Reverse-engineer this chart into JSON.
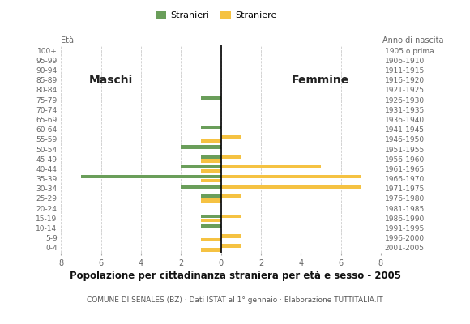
{
  "age_groups": [
    "0-4",
    "5-9",
    "10-14",
    "15-19",
    "20-24",
    "25-29",
    "30-34",
    "35-39",
    "40-44",
    "45-49",
    "50-54",
    "55-59",
    "60-64",
    "65-69",
    "70-74",
    "75-79",
    "80-84",
    "85-89",
    "90-94",
    "95-99",
    "100+"
  ],
  "birth_years": [
    "2001-2005",
    "1996-2000",
    "1991-1995",
    "1986-1990",
    "1981-1985",
    "1976-1980",
    "1971-1975",
    "1966-1970",
    "1961-1965",
    "1956-1960",
    "1951-1955",
    "1946-1950",
    "1941-1945",
    "1936-1940",
    "1931-1935",
    "1926-1930",
    "1921-1925",
    "1916-1920",
    "1911-1915",
    "1906-1910",
    "1905 o prima"
  ],
  "maschi_stranieri": [
    0,
    0,
    1,
    1,
    0,
    1,
    2,
    7,
    2,
    1,
    2,
    0,
    1,
    0,
    0,
    1,
    0,
    0,
    0,
    0,
    0
  ],
  "maschi_straniere": [
    1,
    1,
    0,
    1,
    0,
    1,
    0,
    1,
    1,
    1,
    0,
    1,
    0,
    0,
    0,
    0,
    0,
    0,
    0,
    0,
    0
  ],
  "femmine_stranieri": [
    0,
    0,
    0,
    0,
    0,
    0,
    0,
    0,
    0,
    0,
    0,
    0,
    0,
    0,
    0,
    0,
    0,
    0,
    0,
    0,
    0
  ],
  "femmine_straniere": [
    1,
    1,
    0,
    1,
    0,
    1,
    7,
    7,
    5,
    1,
    0,
    1,
    0,
    0,
    0,
    0,
    0,
    0,
    0,
    0,
    0
  ],
  "male_color": "#6a9e5a",
  "female_color": "#f5c242",
  "xlim": 8,
  "title": "Popolazione per cittadinanza straniera per età e sesso - 2005",
  "subtitle": "COMUNE DI SENALES (BZ) · Dati ISTAT al 1° gennaio · Elaborazione TUTTITALIA.IT",
  "legend_stranieri": "Stranieri",
  "legend_straniere": "Straniere",
  "ylabel_eta": "Età",
  "ylabel_anno": "Anno di nascita",
  "label_maschi": "Maschi",
  "label_femmine": "Femmine"
}
